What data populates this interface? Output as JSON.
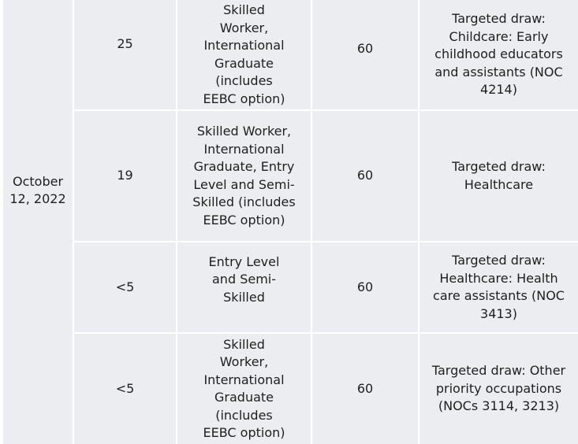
{
  "date": "October 12, 2022",
  "rows": [
    {
      "invitations": "25",
      "category": "Skilled Worker, International Graduate (includes EEBC option)",
      "min_score": "60",
      "notes": "Targeted draw: Childcare: Early childhood educators and assistants (NOC 4214)"
    },
    {
      "invitations": "19",
      "category": "Skilled Worker, International Graduate, Entry Level and Semi-Skilled (includes EEBC option)",
      "min_score": "60",
      "notes": "Targeted draw: Healthcare"
    },
    {
      "invitations": "<5",
      "category": "Entry Level and Semi-Skilled",
      "min_score": "60",
      "notes": "Targeted draw: Healthcare: Health care assistants (NOC 3413)"
    },
    {
      "invitations": "<5",
      "category": "Skilled Worker, International Graduate (includes EEBC option)",
      "min_score": "60",
      "notes": "Targeted draw: Other priority occupations (NOCs 3114, 3213)"
    }
  ]
}
